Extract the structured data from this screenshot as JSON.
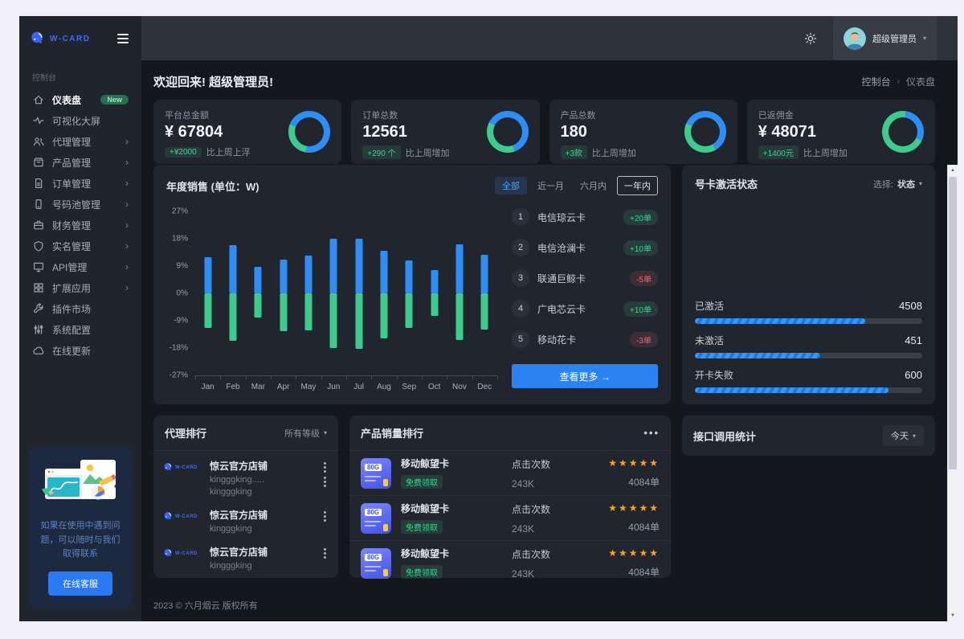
{
  "brand": {
    "name": "W-CARD"
  },
  "navbar": {
    "user_name": "超级管理员"
  },
  "welcome": {
    "title": "欢迎回来! 超级管理员!"
  },
  "breadcrumb": {
    "items": [
      "控制台",
      "仪表盘"
    ]
  },
  "colors": {
    "accent_blue": "#2f8ef5",
    "accent_green": "#3dcb8e",
    "badge_green": "#3fd18e",
    "badge_red": "#e66a6a",
    "star_orange": "#ffa21a",
    "primary_button": "#2a83f0"
  },
  "sidebar": {
    "section_label": "控制台",
    "items": [
      {
        "key": "dashboard",
        "label": "仪表盘",
        "icon": "home-icon",
        "badge": "New",
        "active": true
      },
      {
        "key": "big-screen",
        "label": "可视化大屏",
        "icon": "pulse-icon"
      },
      {
        "key": "agents",
        "label": "代理管理",
        "icon": "users-icon",
        "expandable": true
      },
      {
        "key": "products",
        "label": "产品管理",
        "icon": "box-icon",
        "expandable": true
      },
      {
        "key": "orders",
        "label": "订单管理",
        "icon": "file-icon",
        "expandable": true
      },
      {
        "key": "number-pool",
        "label": "号码池管理",
        "icon": "phone-icon",
        "expandable": true
      },
      {
        "key": "finance",
        "label": "财务管理",
        "icon": "briefcase-icon",
        "expandable": true
      },
      {
        "key": "realname",
        "label": "实名管理",
        "icon": "shield-icon",
        "expandable": true
      },
      {
        "key": "api",
        "label": "API管理",
        "icon": "monitor-icon",
        "expandable": true
      },
      {
        "key": "extensions",
        "label": "扩展应用",
        "icon": "grid-icon",
        "expandable": true
      },
      {
        "key": "plugin-market",
        "label": "插件市场",
        "icon": "wrench-icon"
      },
      {
        "key": "system-config",
        "label": "系统配置",
        "icon": "sliders-icon"
      },
      {
        "key": "online-update",
        "label": "在线更新",
        "icon": "cloud-icon"
      }
    ],
    "help_card": {
      "text": "如果在使用中遇到问题，可以随时与我们取得联系",
      "button": "在线客服"
    }
  },
  "stats": [
    {
      "label": "平台总金额",
      "value": "¥ 67804",
      "badge": "+¥2000",
      "note": "比上周上浮",
      "donut": {
        "from": 190,
        "green_pct": 28
      }
    },
    {
      "label": "订单总数",
      "value": "12561",
      "badge": "+290 个",
      "note": "比上周增加",
      "donut": {
        "from": 160,
        "green_pct": 38
      }
    },
    {
      "label": "产品总数",
      "value": "180",
      "badge": "+3款",
      "note": "比上周增加",
      "donut": {
        "from": 150,
        "green_pct": 40
      }
    },
    {
      "label": "已返佣金",
      "value": "¥ 48071",
      "badge": "+1400元",
      "note": "比上周增加",
      "donut": {
        "from": 115,
        "green_pct": 70
      }
    }
  ],
  "sales": {
    "title": "年度销售 (单位：W)",
    "filters": [
      {
        "label": "全部",
        "state": "primary"
      },
      {
        "label": "近一月",
        "state": "plain"
      },
      {
        "label": "六月内",
        "state": "plain"
      },
      {
        "label": "一年内",
        "state": "outline"
      }
    ],
    "rank": [
      {
        "index": "1",
        "name": "电信琼云卡",
        "delta": "+20单",
        "type": "up"
      },
      {
        "index": "2",
        "name": "电信沧澜卡",
        "delta": "+10单",
        "type": "up"
      },
      {
        "index": "3",
        "name": "联通巨鲸卡",
        "delta": "-5单",
        "type": "dn"
      },
      {
        "index": "4",
        "name": "广电芯云卡",
        "delta": "+10单",
        "type": "up"
      },
      {
        "index": "5",
        "name": "移动花卡",
        "delta": "-3单",
        "type": "dn"
      }
    ],
    "view_more": "查看更多 →"
  },
  "chart_data": {
    "type": "bar",
    "title": "年度销售 (单位：W)",
    "categories": [
      "Jan",
      "Feb",
      "Mar",
      "Apr",
      "May",
      "Jun",
      "Jul",
      "Aug",
      "Sep",
      "Oct",
      "Nov",
      "Dec"
    ],
    "series": [
      {
        "name": "positive",
        "color": "#2f8ef5",
        "values": [
          12,
          16,
          8.8,
          11.2,
          12.4,
          18,
          18,
          14,
          10.8,
          7.8,
          16.2,
          12.6
        ]
      },
      {
        "name": "negative",
        "color": "#3dcb8e",
        "values": [
          -11.5,
          -15.5,
          -8,
          -12.5,
          -12.2,
          -18,
          -18.3,
          -14.8,
          -11.4,
          -7.3,
          -15.3,
          -11.9
        ]
      }
    ],
    "ylim": [
      -27,
      27
    ],
    "yticks": [
      "27%",
      "18%",
      "9%",
      "0%",
      "-9%",
      "-18%",
      "-27%"
    ],
    "grid": false,
    "legend_position": "none"
  },
  "activation": {
    "title": "号卡激活状态",
    "select_prefix": "选择:",
    "select_value": "状态",
    "bars": [
      {
        "label": "已激活",
        "value": "4508",
        "pct": 75
      },
      {
        "label": "未激活",
        "value": "451",
        "pct": 55
      },
      {
        "label": "开卡失败",
        "value": "600",
        "pct": 85
      }
    ]
  },
  "agents": {
    "title": "代理排行",
    "filter": "所有等级",
    "rows": [
      {
        "name": "惊云官方店铺",
        "subs": [
          "kingggking.....",
          "kingggking"
        ],
        "double_menu": true
      },
      {
        "name": "惊云官方店铺",
        "subs": [
          "kingggking"
        ]
      },
      {
        "name": "惊云官方店铺",
        "subs": [
          "kingggking"
        ]
      }
    ]
  },
  "products": {
    "title": "产品销量排行",
    "more": "•••",
    "rows": [
      {
        "name": "移动鲸望卡",
        "thumb": "80G",
        "badge": "免费领取",
        "clicks_label": "点击次数",
        "clicks": "243K",
        "stars": "★★★★★",
        "orders": "4084单"
      },
      {
        "name": "移动鲸望卡",
        "thumb": "80G",
        "badge": "免费领取",
        "clicks_label": "点击次数",
        "clicks": "243K",
        "stars": "★★★★★",
        "orders": "4084单"
      },
      {
        "name": "移动鲸望卡",
        "thumb": "80G",
        "badge": "免费领取",
        "clicks_label": "点击次数",
        "clicks": "243K",
        "stars": "★★★★★",
        "orders": "4084单"
      }
    ]
  },
  "api_card": {
    "title": "接口调用统计",
    "filter": "今天"
  },
  "footer": {
    "text": "2023 © 六月烟云 版权所有"
  }
}
